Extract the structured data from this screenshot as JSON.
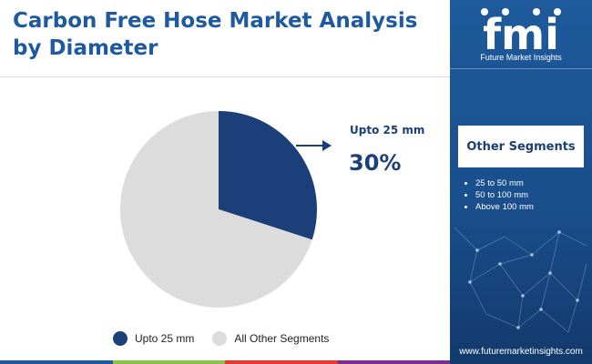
{
  "header": {
    "title": "Carbon Free Hose Market Analysis by Diameter"
  },
  "chart_data": {
    "type": "pie",
    "title": "Carbon Free Hose Market Analysis by Diameter",
    "slices": [
      {
        "label": "Upto 25 mm",
        "value": 30,
        "color": "#1b3f78"
      },
      {
        "label": "All Other Segments",
        "value": 70,
        "color": "#dcdcdc"
      }
    ],
    "callout": {
      "label": "Upto 25 mm",
      "value": "30%"
    },
    "legend": {
      "placement": "bottom",
      "items": [
        "Upto 25 mm",
        "All Other Segments"
      ]
    }
  },
  "legend": {
    "items": [
      {
        "label": "Upto 25 mm",
        "color": "#1b3f78"
      },
      {
        "label": "All Other Segments",
        "color": "#dcdcdc"
      }
    ]
  },
  "sidebar": {
    "logo_text": "fmi",
    "brand": "Future Market Insights",
    "segments_title": "Other Segments",
    "segments": [
      "25 to 50 mm",
      "50 to 100 mm",
      "Above 100 mm"
    ],
    "website": "www.futuremarketinsights.com"
  },
  "colors": {
    "accent": "#1b3f78",
    "title": "#1f5aa0",
    "sidebar": "#1e5a9c",
    "bottom_bar": [
      "#1e5a9c",
      "#8bc34a",
      "#e53935",
      "#7b2c8f"
    ]
  }
}
